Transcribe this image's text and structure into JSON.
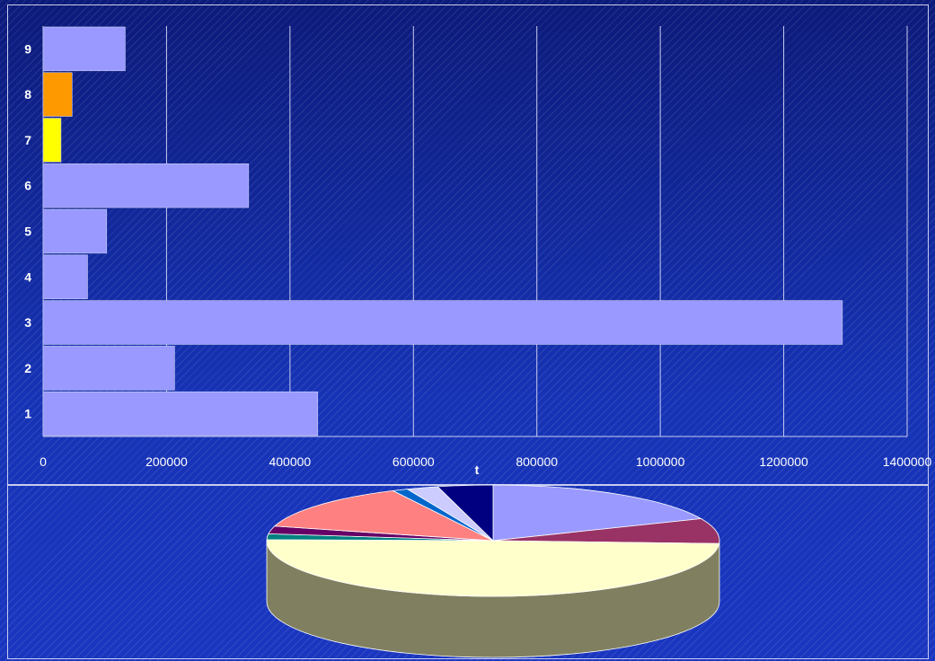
{
  "chart_data": [
    {
      "type": "bar",
      "orientation": "horizontal",
      "categories": [
        "1",
        "2",
        "3",
        "4",
        "5",
        "6",
        "7",
        "8",
        "9"
      ],
      "values": [
        445000,
        213000,
        1295000,
        72000,
        103000,
        333000,
        29000,
        47000,
        133000
      ],
      "bar_colors": [
        "#9999ff",
        "#9999ff",
        "#9999ff",
        "#9999ff",
        "#9999ff",
        "#9999ff",
        "#ffff00",
        "#ff9900",
        "#9999ff"
      ],
      "xlabel": "t",
      "ylabel": "",
      "xlim": [
        0,
        1400000
      ],
      "xticks": [
        "0",
        "200000",
        "400000",
        "600000",
        "800000",
        "1000000",
        "1200000",
        "1400000"
      ],
      "grid": "vertical"
    },
    {
      "type": "pie",
      "style": "3d",
      "values": [
        16.5,
        6.5,
        44,
        1.5,
        2,
        12,
        1,
        2,
        3.5
      ],
      "colors": [
        "#9999ff",
        "#993366",
        "#ffffcc",
        "#008080",
        "#660066",
        "#ff8080",
        "#0066cc",
        "#ccccff",
        "#000080"
      ],
      "side_color": "#808060"
    }
  ]
}
